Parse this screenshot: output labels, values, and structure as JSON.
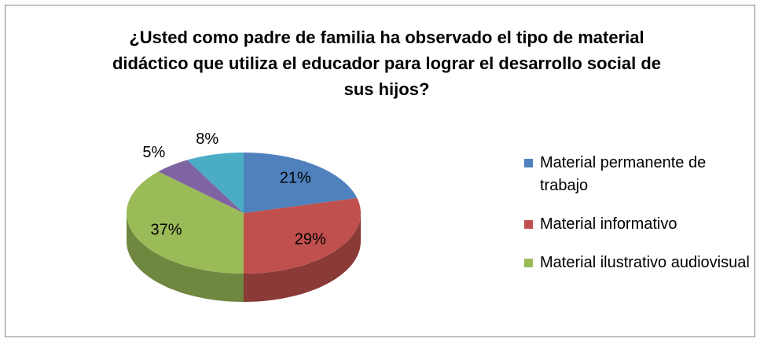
{
  "chart_data": {
    "type": "pie",
    "title": "¿Usted como padre de familia ha observado el tipo de material didáctico que utiliza el educador para lograr el desarrollo social de sus hijos?",
    "categories": [
      "Material permanente de trabajo",
      "Material informativo",
      "Material ilustrativo audiovisual",
      null,
      null
    ],
    "values": [
      21,
      29,
      37,
      5,
      8
    ],
    "value_labels": [
      "21%",
      "29%",
      "37%",
      "5%",
      "8%"
    ],
    "colors": [
      "#4f81bd",
      "#c0504d",
      "#9bbb59",
      "#8064a2",
      "#4bacc6"
    ],
    "legend": "right"
  }
}
